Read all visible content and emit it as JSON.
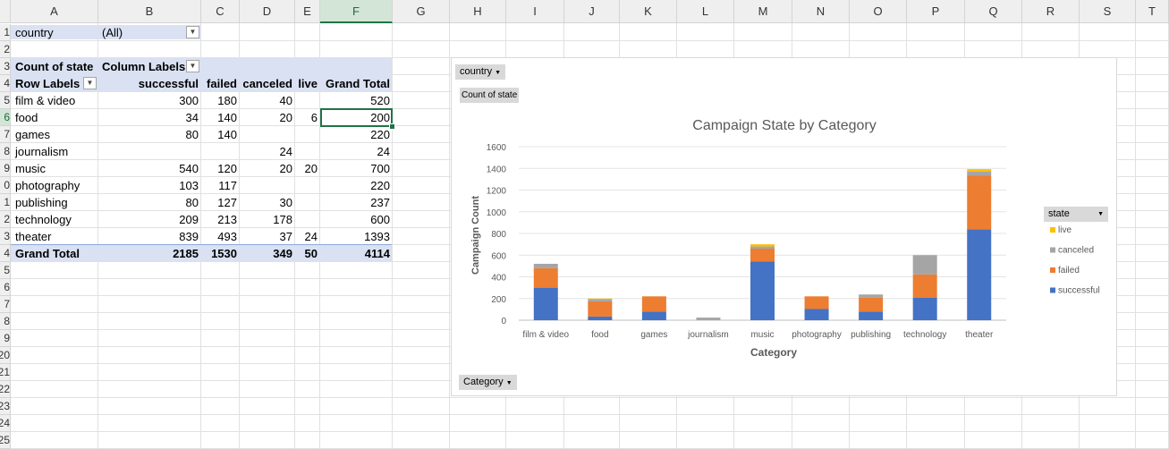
{
  "columns": [
    "A",
    "B",
    "C",
    "D",
    "E",
    "F",
    "G",
    "H",
    "I",
    "J",
    "K",
    "L",
    "M",
    "N",
    "O",
    "P",
    "Q",
    "R",
    "S",
    "T"
  ],
  "selected_column": "F",
  "row_labels_visible": [
    "1",
    "2",
    "3",
    "4",
    "5",
    "6",
    "7",
    "8",
    "9",
    "10",
    "11",
    "12",
    "13",
    "14",
    "15",
    "16",
    "17",
    "18",
    "19",
    "20",
    "21",
    "22",
    "23",
    "24",
    "25"
  ],
  "row_labels_cropped": [
    "1",
    "2",
    "3",
    "4",
    "5",
    "6",
    "7",
    "8",
    "9",
    "0",
    "1",
    "2",
    "3",
    "4",
    "5",
    "6",
    "7",
    "8",
    "9",
    "20",
    "21",
    "22",
    "23",
    "24",
    "25"
  ],
  "selected_row": "6",
  "filter": {
    "label": "country",
    "value": "(All)"
  },
  "pivot": {
    "count_label": "Count of state",
    "column_labels": "Column Labels",
    "row_labels": "Row Labels",
    "headers": [
      "successful",
      "failed",
      "canceled",
      "live",
      "Grand Total"
    ],
    "rows": [
      {
        "name": "film & video",
        "values": [
          "300",
          "180",
          "40",
          "",
          "520"
        ]
      },
      {
        "name": "food",
        "values": [
          "34",
          "140",
          "20",
          "6",
          "200"
        ]
      },
      {
        "name": "games",
        "values": [
          "80",
          "140",
          "",
          "",
          "220"
        ]
      },
      {
        "name": "journalism",
        "values": [
          "",
          "",
          "24",
          "",
          "24"
        ]
      },
      {
        "name": "music",
        "values": [
          "540",
          "120",
          "20",
          "20",
          "700"
        ]
      },
      {
        "name": "photography",
        "values": [
          "103",
          "117",
          "",
          "",
          "220"
        ]
      },
      {
        "name": "publishing",
        "values": [
          "80",
          "127",
          "30",
          "",
          "237"
        ]
      },
      {
        "name": "technology",
        "values": [
          "209",
          "213",
          "178",
          "",
          "600"
        ]
      },
      {
        "name": "theater",
        "values": [
          "839",
          "493",
          "37",
          "24",
          "1393"
        ]
      }
    ],
    "total": {
      "name": "Grand Total",
      "values": [
        "2185",
        "1530",
        "349",
        "50",
        "4114"
      ]
    }
  },
  "chart_buttons": {
    "country": "country",
    "count": "Count of state",
    "category": "Category",
    "state": "state"
  },
  "colors": {
    "successful": "#4472c4",
    "failed": "#ed7d31",
    "canceled": "#a5a5a5",
    "live": "#ffc000",
    "excel_green": "#217346",
    "pivot_band": "#d9e1f2"
  },
  "chart_data": {
    "type": "bar",
    "stacked": true,
    "title": "Campaign State by Category",
    "xlabel": "Category",
    "ylabel": "Campaign Count",
    "ylim": [
      0,
      1600
    ],
    "yticks": [
      0,
      200,
      400,
      600,
      800,
      1000,
      1200,
      1400,
      1600
    ],
    "grid": true,
    "legend_position": "right",
    "categories": [
      "film & video",
      "food",
      "games",
      "journalism",
      "music",
      "photography",
      "publishing",
      "technology",
      "theater"
    ],
    "series": [
      {
        "name": "successful",
        "values": [
          300,
          34,
          80,
          0,
          540,
          103,
          80,
          209,
          839
        ]
      },
      {
        "name": "failed",
        "values": [
          180,
          140,
          140,
          0,
          120,
          117,
          127,
          213,
          493
        ]
      },
      {
        "name": "canceled",
        "values": [
          40,
          20,
          0,
          24,
          20,
          0,
          30,
          178,
          37
        ]
      },
      {
        "name": "live",
        "values": [
          0,
          6,
          0,
          0,
          20,
          0,
          0,
          0,
          24
        ]
      }
    ],
    "legend_order": [
      "live",
      "canceled",
      "failed",
      "successful"
    ]
  }
}
